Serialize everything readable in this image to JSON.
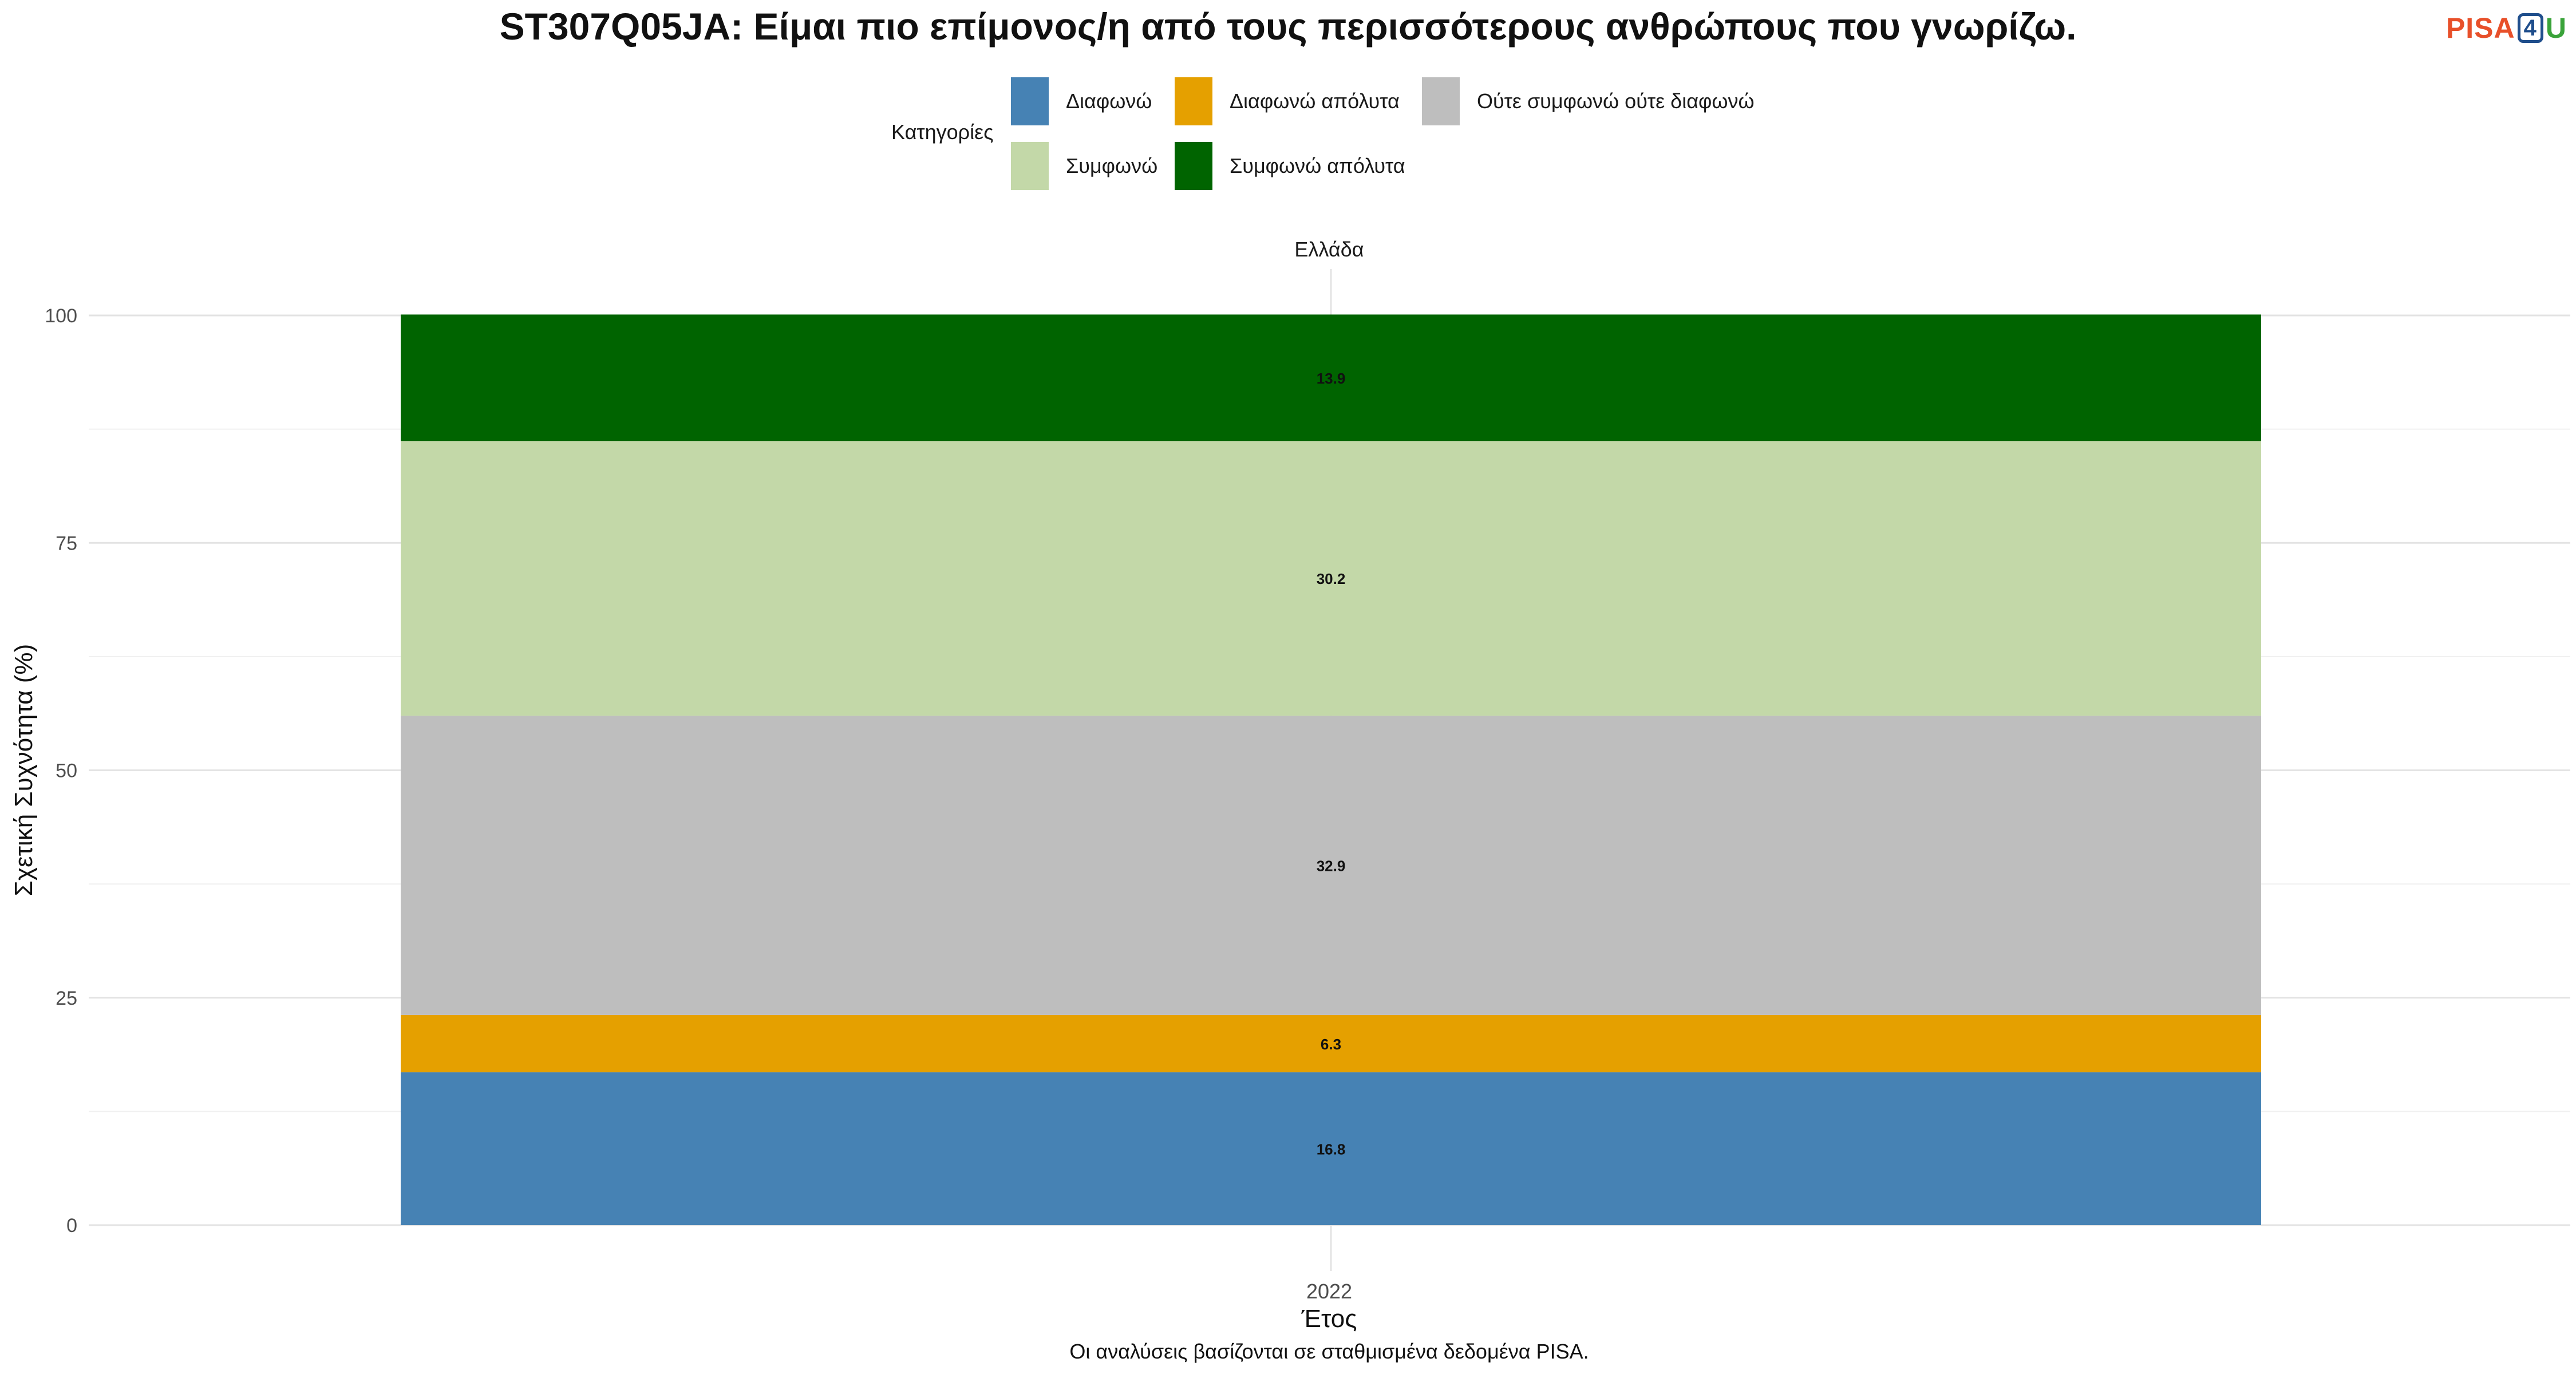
{
  "chart_data": {
    "type": "bar",
    "stacked": true,
    "title": "ST307Q05JA: Είμαι πιο επίμονος/η από τους περισσότερους ανθρώπους που γνωρίζω.",
    "facet_label": "Ελλάδα",
    "xlabel": "Έτος",
    "ylabel": "Σχετική Συχνότητα (%)",
    "categories": [
      "2022"
    ],
    "ylim": [
      0,
      100
    ],
    "yticks": [
      0,
      25,
      50,
      75,
      100
    ],
    "grid": true,
    "legend_title": "Κατηγορίες",
    "legend_position": "top",
    "series": [
      {
        "name": "Διαφωνώ",
        "values": [
          16.8
        ],
        "color": "#4682b4"
      },
      {
        "name": "Διαφωνώ απόλυτα",
        "values": [
          6.3
        ],
        "color": "#e5a000"
      },
      {
        "name": "Ούτε συμφωνώ ούτε διαφωνώ",
        "values": [
          32.9
        ],
        "color": "#bebebe"
      },
      {
        "name": "Συμφωνώ",
        "values": [
          30.2
        ],
        "color": "#c3d8a8"
      },
      {
        "name": "Συμφωνώ απόλυτα",
        "values": [
          13.9
        ],
        "color": "#006400"
      }
    ],
    "caption": "Οι αναλύσεις βασίζονται σε σταθμισμένα δεδομένα PISA."
  },
  "logo": {
    "pisa": "PISA",
    "four": "4",
    "u": "U"
  }
}
